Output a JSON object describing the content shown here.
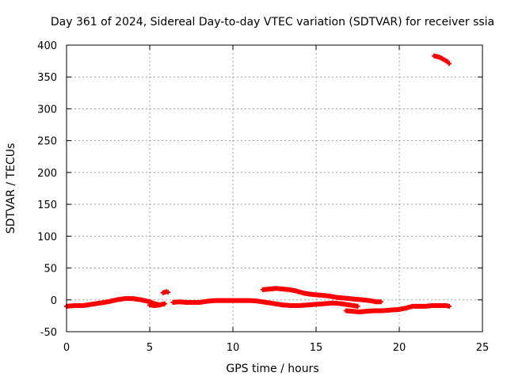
{
  "chart_data": {
    "type": "scatter",
    "title": "Day 361 of 2024, Sidereal Day-to-day VTEC variation (SDTVAR) for receiver ssia",
    "xlabel": "GPS time / hours",
    "ylabel": "SDTVAR / TECUs",
    "xlim": [
      0,
      25
    ],
    "ylim": [
      -50,
      400
    ],
    "xticks": [
      0,
      5,
      10,
      15,
      20,
      25
    ],
    "yticks": [
      -50,
      0,
      50,
      100,
      150,
      200,
      250,
      300,
      350,
      400
    ],
    "grid": true,
    "marker": "plus",
    "color": "#ff0000",
    "series": [
      {
        "x": [
          0.0,
          0.5,
          1.0,
          1.5,
          2.0,
          2.5,
          3.0,
          3.5,
          4.0,
          4.5,
          5.0,
          5.3,
          5.6
        ],
        "y": [
          -10,
          -9,
          -9,
          -7,
          -5,
          -3,
          0,
          2,
          2,
          0,
          -3,
          -6,
          -8
        ]
      },
      {
        "x": [
          5.0,
          5.3,
          5.6,
          5.9
        ],
        "y": [
          -8,
          -9,
          -8,
          -6
        ]
      },
      {
        "x": [
          5.8,
          6.0,
          6.1
        ],
        "y": [
          11,
          13,
          12
        ]
      },
      {
        "x": [
          6.4,
          6.8,
          7.2,
          7.6,
          8.0,
          8.5,
          9.0,
          9.5,
          10.0,
          10.5,
          11.0,
          11.5,
          12.0,
          12.5,
          13.0,
          13.5,
          14.0,
          14.5,
          15.0
        ],
        "y": [
          -4,
          -3,
          -4,
          -4,
          -4,
          -2,
          -1,
          -1,
          -1,
          -1,
          -1,
          -2,
          -4,
          -6,
          -8,
          -9,
          -9,
          -8,
          -7
        ]
      },
      {
        "x": [
          15.0,
          15.5,
          16.0,
          16.5,
          17.0,
          17.5
        ],
        "y": [
          -7,
          -6,
          -5,
          -6,
          -8,
          -10
        ]
      },
      {
        "x": [
          11.8,
          12.2,
          12.6,
          13.0,
          13.4,
          13.8,
          14.2,
          14.6,
          15.0,
          15.4,
          15.8
        ],
        "y": [
          16,
          17,
          18,
          17,
          16,
          14,
          11,
          9,
          8,
          7,
          6
        ]
      },
      {
        "x": [
          15.8,
          16.2,
          16.6,
          17.0,
          17.4,
          17.8,
          18.2,
          18.6,
          18.9
        ],
        "y": [
          6,
          4,
          3,
          2,
          1,
          0,
          -1,
          -3,
          -3
        ]
      },
      {
        "x": [
          16.8,
          17.2,
          17.6,
          18.0,
          18.5,
          19.0,
          19.5,
          20.0,
          20.4
        ],
        "y": [
          -17,
          -18,
          -19,
          -18,
          -17,
          -17,
          -16,
          -15,
          -13
        ]
      },
      {
        "x": [
          20.4,
          20.8,
          21.2,
          21.6,
          22.0,
          22.4,
          22.8,
          23.0
        ],
        "y": [
          -13,
          -10,
          -10,
          -10,
          -9,
          -9,
          -9,
          -10
        ]
      },
      {
        "x": [
          22.1,
          22.3,
          22.5,
          22.7,
          22.9,
          23.0
        ],
        "y": [
          383,
          382,
          380,
          377,
          374,
          371
        ]
      }
    ]
  }
}
